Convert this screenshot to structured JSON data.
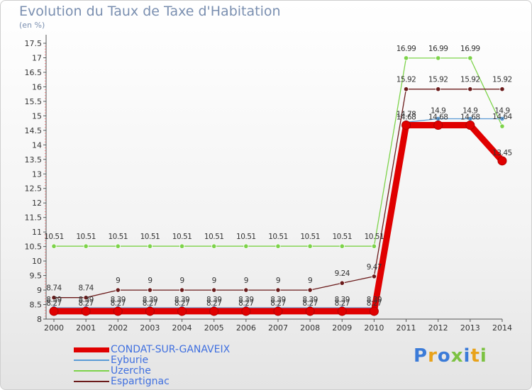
{
  "chart_data": {
    "type": "line",
    "title": "Evolution du Taux de Taxe d'Habitation",
    "subtitle": "(en %)",
    "ylim": [
      8,
      17.5
    ],
    "yticks": [
      "8",
      "8.5",
      "9",
      "9.5",
      "10",
      "10.5",
      "11",
      "11.5",
      "12",
      "12.5",
      "13",
      "13.5",
      "14",
      "14.5",
      "15",
      "15.5",
      "16",
      "16.5",
      "17",
      "17.5"
    ],
    "categories": [
      "2000",
      "2001",
      "2002",
      "2003",
      "2004",
      "2005",
      "2006",
      "2007",
      "2008",
      "2009",
      "2010",
      "2011",
      "2012",
      "2013",
      "2014"
    ],
    "series": [
      {
        "name": "CONDAT-SUR-GANAVEIX",
        "color": "#e00000",
        "values": [
          8.27,
          8.27,
          8.27,
          8.27,
          8.27,
          8.27,
          8.27,
          8.27,
          8.27,
          8.27,
          8.27,
          14.68,
          14.68,
          14.68,
          13.45
        ]
      },
      {
        "name": "Eyburie",
        "color": "#5b9bd5",
        "values": [
          8.39,
          8.39,
          8.39,
          8.39,
          8.39,
          8.39,
          8.39,
          8.39,
          8.39,
          8.39,
          8.39,
          14.78,
          14.9,
          14.9,
          14.9
        ]
      },
      {
        "name": "Uzerche",
        "color": "#7dd34a",
        "values": [
          10.51,
          10.51,
          10.51,
          10.51,
          10.51,
          10.51,
          10.51,
          10.51,
          10.51,
          10.51,
          10.51,
          16.99,
          16.99,
          16.99,
          14.64
        ]
      },
      {
        "name": "Espartignac",
        "color": "#6b1b1b",
        "values": [
          8.74,
          8.74,
          9,
          9,
          9,
          9,
          9,
          9,
          9,
          9.24,
          9.47,
          15.92,
          15.92,
          15.92,
          15.92
        ]
      }
    ],
    "data_labels": [
      [
        "8.27",
        "8.27",
        "8.27",
        "8.27",
        "8.27",
        "8.27",
        "8.27",
        "8.27",
        "8.27",
        "8.27",
        "8.27",
        "14.68",
        "14.68",
        "14.68",
        "13.45"
      ],
      [
        "8.39",
        "8.39",
        "8.39",
        "8.39",
        "8.39",
        "8.39",
        "8.39",
        "8.39",
        "8.39",
        "8.39",
        "8.39",
        "14.78",
        "14.9",
        "14.9",
        "14.9"
      ],
      [
        "10.51",
        "10.51",
        "10.51",
        "10.51",
        "10.51",
        "10.51",
        "10.51",
        "10.51",
        "10.51",
        "10.51",
        "10.51",
        "16.99",
        "16.99",
        "16.99",
        "14.64"
      ],
      [
        "8.74",
        "8.74",
        "9",
        "9",
        "9",
        "9",
        "9",
        "9",
        "9",
        "9.24",
        "9.47",
        "15.92",
        "15.92",
        "15.92",
        "15.92"
      ]
    ],
    "legend_position": "bottom-left",
    "grid": false
  },
  "logo": {
    "letters": [
      "P",
      "r",
      "o",
      "x",
      "i",
      "t",
      "i"
    ],
    "colors": [
      "#3b7bd8",
      "#e8a21a",
      "#3b7bd8",
      "#7cc242",
      "#3b7bd8",
      "#e8a21a",
      "#7cc242"
    ]
  }
}
